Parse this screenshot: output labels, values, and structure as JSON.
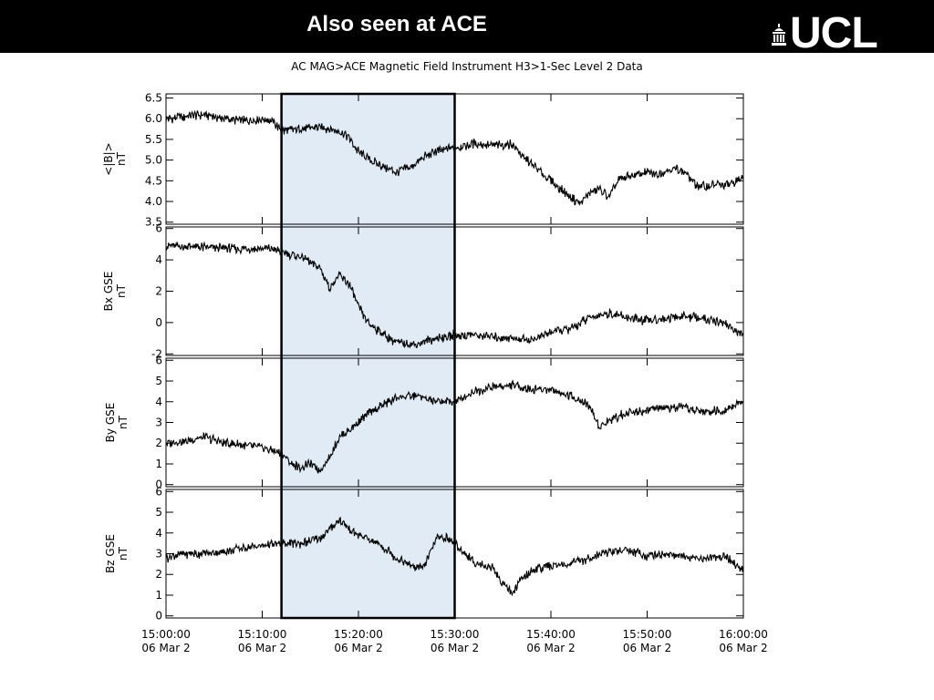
{
  "slide": {
    "title": "Also seen at ACE",
    "logo_text": "UCL",
    "colors": {
      "header_bg": "#000000",
      "header_text": "#ffffff",
      "highlight_fill": "#e1ebf6",
      "trace": "#000000"
    }
  },
  "chart_data": {
    "type": "line",
    "title": "AC  MAG>ACE Magnetic Field Instrument  H3>1-Sec Level 2 Data",
    "grid": false,
    "x_ticks": [
      {
        "time": "15:00:00",
        "date": "06 Mar  2"
      },
      {
        "time": "15:10:00",
        "date": "06 Mar  2"
      },
      {
        "time": "15:20:00",
        "date": "06 Mar  2"
      },
      {
        "time": "15:30:00",
        "date": "06 Mar  2"
      },
      {
        "time": "15:40:00",
        "date": "06 Mar  2"
      },
      {
        "time": "15:50:00",
        "date": "06 Mar  2"
      },
      {
        "time": "16:00:00",
        "date": "06 Mar  2"
      }
    ],
    "xlim": [
      "15:00:00",
      "16:00:00"
    ],
    "highlight": {
      "start": "15:12:00",
      "end": "15:30:00"
    },
    "panels": [
      {
        "ylabel": "<|B|>",
        "unit": "nT",
        "ylim": [
          3.45,
          6.6
        ],
        "yticks": [
          "3.5",
          "4.0",
          "4.5",
          "5.0",
          "5.5",
          "6.0",
          "6.5"
        ],
        "x": [
          "15:00",
          "15:02",
          "15:04",
          "15:06",
          "15:08",
          "15:10",
          "15:11",
          "15:12",
          "15:14",
          "15:16",
          "15:18",
          "15:19",
          "15:20",
          "15:22",
          "15:24",
          "15:26",
          "15:27",
          "15:28",
          "15:30",
          "15:32",
          "15:34",
          "15:36",
          "15:37",
          "15:38",
          "15:39",
          "15:40",
          "15:41",
          "15:42",
          "15:43",
          "15:44",
          "15:45",
          "15:46",
          "15:47",
          "15:48",
          "15:49",
          "15:50",
          "15:51",
          "15:52",
          "15:53",
          "15:54",
          "15:55",
          "15:56",
          "15:57",
          "15:58",
          "15:59",
          "16:00"
        ],
        "values": [
          6.0,
          6.05,
          6.1,
          6.0,
          5.95,
          6.0,
          5.95,
          5.7,
          5.75,
          5.8,
          5.7,
          5.55,
          5.2,
          4.9,
          4.7,
          4.9,
          5.1,
          5.2,
          5.3,
          5.4,
          5.35,
          5.4,
          5.1,
          4.9,
          4.7,
          4.5,
          4.3,
          4.1,
          3.95,
          4.2,
          4.3,
          4.1,
          4.5,
          4.6,
          4.65,
          4.7,
          4.65,
          4.75,
          4.8,
          4.7,
          4.4,
          4.35,
          4.4,
          4.4,
          4.45,
          4.6
        ]
      },
      {
        "ylabel": "Bx GSE",
        "unit": "nT",
        "ylim": [
          -2.1,
          6.1
        ],
        "yticks": [
          "-2",
          "0",
          "2",
          "4",
          "6"
        ],
        "x": [
          "15:00",
          "15:04",
          "15:08",
          "15:11",
          "15:12",
          "15:14",
          "15:16",
          "15:17",
          "15:18",
          "15:19",
          "15:20",
          "15:21",
          "15:22",
          "15:24",
          "15:26",
          "15:28",
          "15:30",
          "15:32",
          "15:34",
          "15:36",
          "15:38",
          "15:40",
          "15:42",
          "15:44",
          "15:46",
          "15:48",
          "15:50",
          "15:52",
          "15:54",
          "15:56",
          "15:58",
          "16:00"
        ],
        "values": [
          4.9,
          4.8,
          4.7,
          4.7,
          4.5,
          4.2,
          3.5,
          2.2,
          3.0,
          2.5,
          1.0,
          0.0,
          -0.5,
          -1.3,
          -1.4,
          -1.0,
          -0.8,
          -0.8,
          -0.9,
          -1.0,
          -1.1,
          -0.6,
          -0.4,
          0.3,
          0.6,
          0.3,
          0.1,
          0.3,
          0.4,
          0.2,
          0.0,
          -0.9
        ]
      },
      {
        "ylabel": "By GSE",
        "unit": "nT",
        "ylim": [
          -0.1,
          6.1
        ],
        "yticks": [
          "0",
          "1",
          "2",
          "3",
          "4",
          "5",
          "6"
        ],
        "x": [
          "15:00",
          "15:02",
          "15:04",
          "15:06",
          "15:08",
          "15:10",
          "15:12",
          "15:13",
          "15:14",
          "15:15",
          "15:16",
          "15:17",
          "15:18",
          "15:19",
          "15:20",
          "15:21",
          "15:22",
          "15:24",
          "15:26",
          "15:28",
          "15:30",
          "15:32",
          "15:34",
          "15:36",
          "15:38",
          "15:40",
          "15:42",
          "15:44",
          "15:45",
          "15:46",
          "15:48",
          "15:50",
          "15:52",
          "15:54",
          "15:56",
          "15:58",
          "16:00"
        ],
        "values": [
          2.0,
          2.1,
          2.3,
          2.0,
          1.9,
          1.8,
          1.5,
          1.0,
          0.8,
          1.0,
          0.7,
          1.3,
          2.3,
          2.6,
          3.0,
          3.4,
          3.7,
          4.2,
          4.3,
          4.0,
          4.0,
          4.5,
          4.7,
          4.8,
          4.6,
          4.6,
          4.3,
          3.8,
          2.8,
          3.1,
          3.5,
          3.6,
          3.7,
          3.7,
          3.5,
          3.6,
          4.0
        ]
      },
      {
        "ylabel": "Bz GSE",
        "unit": "nT",
        "ylim": [
          -0.1,
          6.1
        ],
        "yticks": [
          "0",
          "1",
          "2",
          "3",
          "4",
          "5",
          "6"
        ],
        "x": [
          "15:00",
          "15:02",
          "15:04",
          "15:06",
          "15:08",
          "15:10",
          "15:12",
          "15:14",
          "15:16",
          "15:18",
          "15:19",
          "15:20",
          "15:22",
          "15:24",
          "15:26",
          "15:27",
          "15:28",
          "15:29",
          "15:30",
          "15:32",
          "15:34",
          "15:35",
          "15:36",
          "15:37",
          "15:38",
          "15:40",
          "15:42",
          "15:44",
          "15:46",
          "15:48",
          "15:50",
          "15:52",
          "15:54",
          "15:56",
          "15:58",
          "16:00"
        ],
        "values": [
          2.8,
          3.0,
          3.0,
          3.1,
          3.3,
          3.4,
          3.5,
          3.5,
          3.7,
          4.6,
          4.2,
          3.9,
          3.5,
          2.8,
          2.3,
          2.5,
          3.7,
          3.8,
          3.5,
          2.6,
          2.3,
          1.6,
          1.1,
          1.8,
          2.2,
          2.4,
          2.5,
          2.8,
          3.1,
          3.2,
          2.9,
          3.0,
          2.8,
          2.8,
          2.9,
          2.2
        ]
      }
    ]
  }
}
